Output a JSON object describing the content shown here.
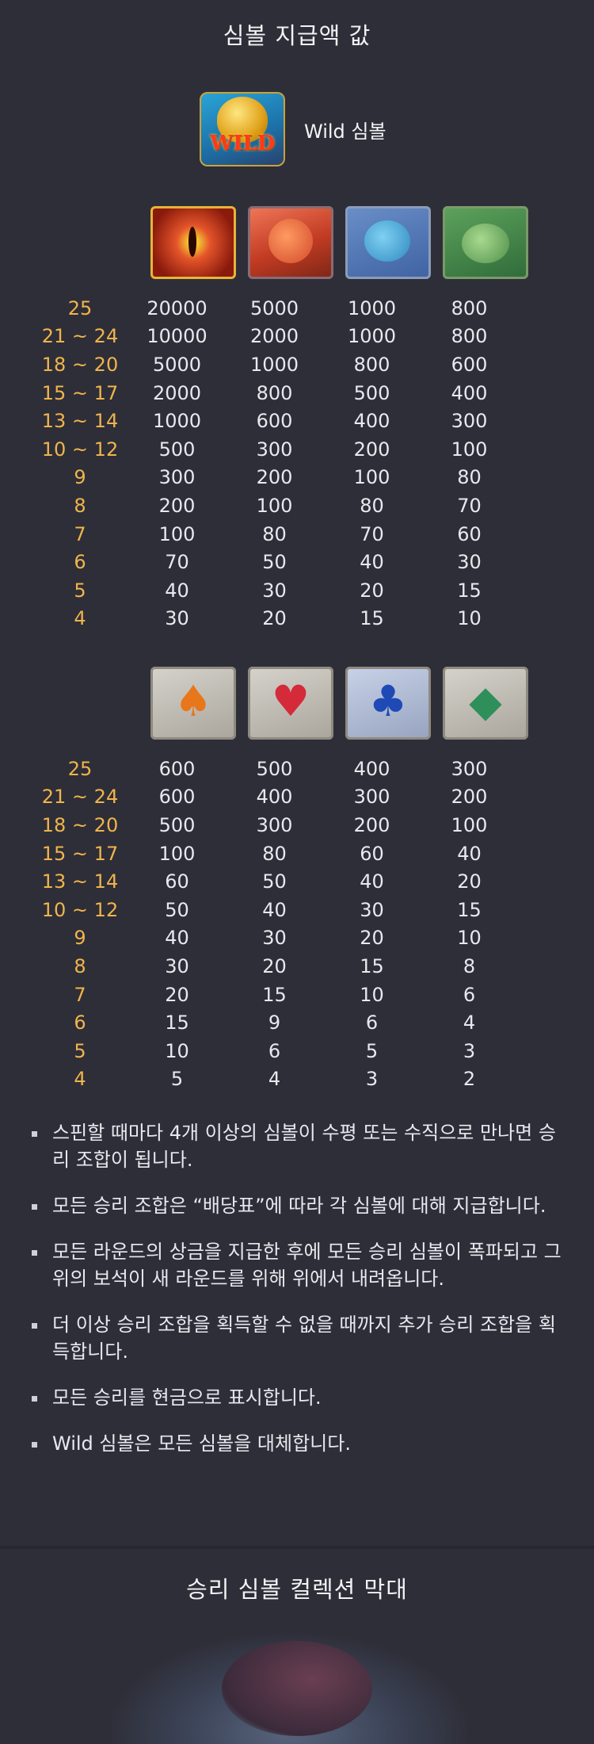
{
  "section_title": "심볼 지급액 값",
  "wild": {
    "label": "Wild 심볼",
    "icon_text": "WILD"
  },
  "table1": {
    "icons": [
      "dragon-eye-icon",
      "red-dragon-icon",
      "blue-bird-icon",
      "frog-icon"
    ],
    "rows": [
      {
        "count": "25",
        "values": [
          "20000",
          "5000",
          "1000",
          "800"
        ]
      },
      {
        "count": "21 ~ 24",
        "values": [
          "10000",
          "2000",
          "1000",
          "800"
        ]
      },
      {
        "count": "18 ~ 20",
        "values": [
          "5000",
          "1000",
          "800",
          "600"
        ]
      },
      {
        "count": "15 ~ 17",
        "values": [
          "2000",
          "800",
          "500",
          "400"
        ]
      },
      {
        "count": "13 ~ 14",
        "values": [
          "1000",
          "600",
          "400",
          "300"
        ]
      },
      {
        "count": "10 ~ 12",
        "values": [
          "500",
          "300",
          "200",
          "100"
        ]
      },
      {
        "count": "9",
        "values": [
          "300",
          "200",
          "100",
          "80"
        ]
      },
      {
        "count": "8",
        "values": [
          "200",
          "100",
          "80",
          "70"
        ]
      },
      {
        "count": "7",
        "values": [
          "100",
          "80",
          "70",
          "60"
        ]
      },
      {
        "count": "6",
        "values": [
          "70",
          "50",
          "40",
          "30"
        ]
      },
      {
        "count": "5",
        "values": [
          "40",
          "30",
          "20",
          "15"
        ]
      },
      {
        "count": "4",
        "values": [
          "30",
          "20",
          "15",
          "10"
        ]
      }
    ]
  },
  "table2": {
    "icons": [
      "spade-icon",
      "heart-icon",
      "club-icon",
      "diamond-icon"
    ],
    "rows": [
      {
        "count": "25",
        "values": [
          "600",
          "500",
          "400",
          "300"
        ]
      },
      {
        "count": "21 ~ 24",
        "values": [
          "600",
          "400",
          "300",
          "200"
        ]
      },
      {
        "count": "18 ~ 20",
        "values": [
          "500",
          "300",
          "200",
          "100"
        ]
      },
      {
        "count": "15 ~ 17",
        "values": [
          "100",
          "80",
          "60",
          "40"
        ]
      },
      {
        "count": "13 ~ 14",
        "values": [
          "60",
          "50",
          "40",
          "20"
        ]
      },
      {
        "count": "10 ~ 12",
        "values": [
          "50",
          "40",
          "30",
          "15"
        ]
      },
      {
        "count": "9",
        "values": [
          "40",
          "30",
          "20",
          "10"
        ]
      },
      {
        "count": "8",
        "values": [
          "30",
          "20",
          "15",
          "8"
        ]
      },
      {
        "count": "7",
        "values": [
          "20",
          "15",
          "10",
          "6"
        ]
      },
      {
        "count": "6",
        "values": [
          "15",
          "9",
          "6",
          "4"
        ]
      },
      {
        "count": "5",
        "values": [
          "10",
          "6",
          "5",
          "3"
        ]
      },
      {
        "count": "4",
        "values": [
          "5",
          "4",
          "3",
          "2"
        ]
      }
    ]
  },
  "rules": [
    "스핀할 때마다 4개 이상의 심볼이 수평 또는 수직으로 만나면 승리 조합이 됩니다.",
    "모든 승리 조합은 “배당표”에 따라 각 심볼에 대해 지급합니다.",
    "모든 라운드의 상금을 지급한 후에 모든 승리 심볼이 폭파되고 그 위의 보석이 새 라운드를 위해 위에서 내려옵니다.",
    "더 이상 승리 조합을 획득할 수 없을 때까지 추가 승리 조합을 획득합니다.",
    "모든 승리를 현금으로 표시합니다.",
    "Wild 심볼은 모든 심볼을 대체합니다."
  ],
  "bar_title": "승리 심볼 컬렉션 막대",
  "colors": {
    "background": "#2e2e38",
    "count_color": "#f0b44c",
    "text": "#e8e8ee"
  }
}
